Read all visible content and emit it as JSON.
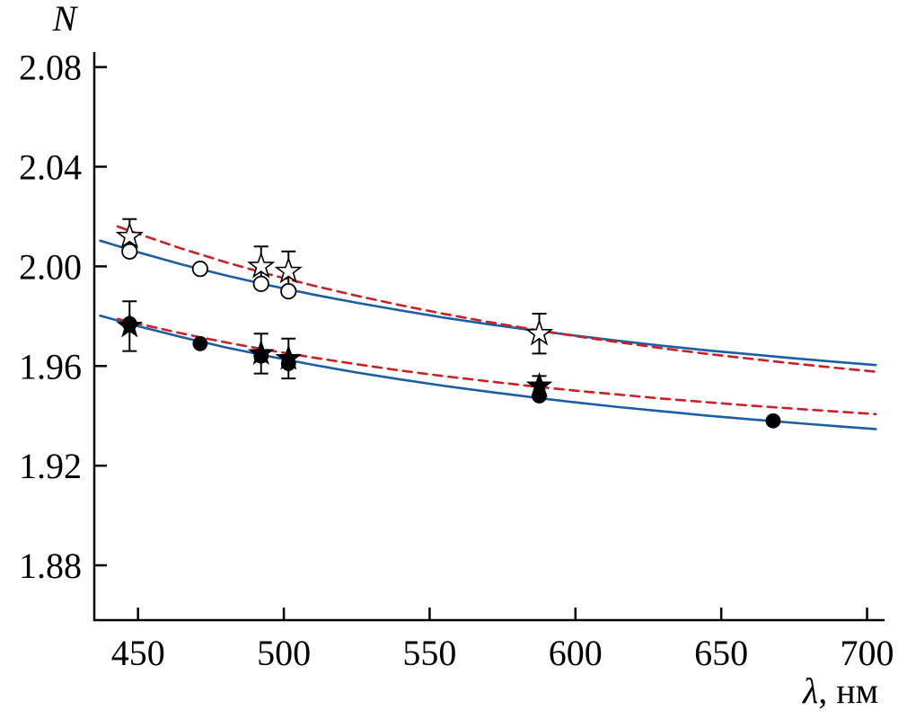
{
  "figure": {
    "background": "#ffffff"
  },
  "chart_data": {
    "type": "scatter",
    "title": "",
    "xlabel": "λ, нм",
    "ylabel": "N",
    "xlim": [
      435,
      706
    ],
    "ylim": [
      1.858,
      2.086
    ],
    "xticks": [
      450,
      500,
      550,
      600,
      650,
      700
    ],
    "xtick_labels": [
      "450",
      "500",
      "550",
      "600",
      "650",
      "700"
    ],
    "yticks": [
      1.88,
      1.92,
      1.96,
      2.0,
      2.04,
      2.08
    ],
    "ytick_labels": [
      "1.88",
      "1.92",
      "1.96",
      "2.00",
      "2.04",
      "2.08"
    ],
    "grid": false,
    "legend": "none",
    "colors": {
      "fit_solid": "#1a5ea6",
      "fit_dashed": "#cc2027",
      "markers": "#000000"
    },
    "series": [
      {
        "name": "fit-upper-solid",
        "kind": "curve",
        "color": "#1a5ea6",
        "style": "solid",
        "x": [
          437,
          450,
          465,
          480,
          495,
          510,
          525,
          540,
          555,
          570,
          585,
          600,
          615,
          630,
          645,
          660,
          675,
          690,
          703
        ],
        "y": [
          2.0103,
          2.0057,
          2.0008,
          1.9964,
          1.9924,
          1.9887,
          1.9854,
          1.9823,
          1.9794,
          1.9768,
          1.9744,
          1.9722,
          1.9701,
          1.9681,
          1.9663,
          1.9647,
          1.9631,
          1.9616,
          1.9604
        ]
      },
      {
        "name": "fit-upper-dashed",
        "kind": "curve",
        "color": "#cc2027",
        "style": "dashed",
        "x": [
          443,
          450,
          465,
          480,
          495,
          510,
          525,
          540,
          555,
          570,
          585,
          600,
          615,
          630,
          645,
          660,
          675,
          690,
          703
        ],
        "y": [
          2.016,
          2.0131,
          2.0071,
          2.0017,
          1.9968,
          1.9923,
          1.9882,
          1.9844,
          1.9809,
          1.9777,
          1.9748,
          1.972,
          1.9695,
          1.9671,
          1.9649,
          1.9629,
          1.961,
          1.9592,
          1.9577
        ]
      },
      {
        "name": "fit-lower-solid",
        "kind": "curve",
        "color": "#1a5ea6",
        "style": "solid",
        "x": [
          437,
          450,
          465,
          480,
          495,
          510,
          525,
          540,
          555,
          570,
          585,
          600,
          615,
          630,
          645,
          660,
          675,
          690,
          703
        ],
        "y": [
          1.9802,
          1.976,
          1.9716,
          1.9675,
          1.9639,
          1.9605,
          1.9574,
          1.9546,
          1.952,
          1.9497,
          1.9475,
          1.9454,
          1.9435,
          1.9418,
          1.9401,
          1.9386,
          1.9372,
          1.9358,
          1.9347
        ]
      },
      {
        "name": "fit-lower-dashed",
        "kind": "curve",
        "color": "#cc2027",
        "style": "dashed",
        "x": [
          443,
          450,
          465,
          480,
          495,
          510,
          525,
          540,
          555,
          570,
          585,
          600,
          615,
          630,
          645,
          660,
          675,
          690,
          703
        ],
        "y": [
          1.9789,
          1.977,
          1.9731,
          1.9695,
          1.9663,
          1.9634,
          1.9607,
          1.9582,
          1.9559,
          1.9539,
          1.9519,
          1.9501,
          1.9485,
          1.9469,
          1.9455,
          1.9441,
          1.9429,
          1.9417,
          1.9407
        ]
      },
      {
        "name": "open-circles",
        "kind": "scatter",
        "marker": "circle-open",
        "x": [
          447.1,
          471.3,
          492.2,
          501.6
        ],
        "y": [
          2.006,
          1.999,
          1.993,
          1.99
        ],
        "yerr": [
          0,
          0,
          0,
          0
        ]
      },
      {
        "name": "open-stars",
        "kind": "scatter",
        "marker": "star-open",
        "x": [
          447.1,
          492.2,
          501.6,
          587.6
        ],
        "y": [
          2.012,
          2.0,
          1.998,
          1.973
        ],
        "yerr": [
          0.007,
          0.008,
          0.008,
          0.008
        ]
      },
      {
        "name": "filled-circles",
        "kind": "scatter",
        "marker": "circle-filled",
        "x": [
          447.1,
          471.3,
          492.2,
          501.6,
          587.6,
          667.8
        ],
        "y": [
          1.977,
          1.969,
          1.964,
          1.961,
          1.948,
          1.938
        ],
        "yerr": [
          0,
          0,
          0,
          0,
          0,
          0
        ]
      },
      {
        "name": "filled-stars",
        "kind": "scatter",
        "marker": "star-filled",
        "x": [
          447.1,
          492.2,
          501.6,
          587.6
        ],
        "y": [
          1.976,
          1.965,
          1.963,
          1.952
        ],
        "yerr": [
          0.01,
          0.008,
          0.008,
          0.004
        ]
      }
    ]
  }
}
